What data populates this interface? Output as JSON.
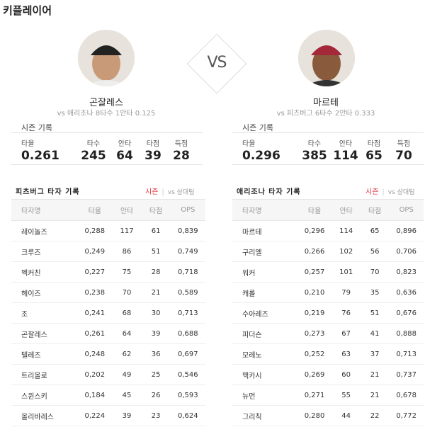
{
  "title": "키플레이어",
  "vs_label": "VS",
  "colors": {
    "accent": "#e0323c",
    "header_bg": "#f6f6f6"
  },
  "season_label": "시즌 기록",
  "stat_labels": [
    "타율",
    "타수",
    "안타",
    "타점",
    "득점"
  ],
  "players": [
    {
      "name": "곤잘레스",
      "sub": "vs 애리조나  8타수 1안타 0.125",
      "stats": [
        "0.261",
        "245",
        "64",
        "39",
        "28"
      ],
      "cap_color": "#222222"
    },
    {
      "name": "마르테",
      "sub": "vs 피츠버그  6타수 2안타 0.333",
      "stats": [
        "0.296",
        "385",
        "114",
        "65",
        "70"
      ],
      "cap_color": "#a3283a"
    }
  ],
  "tables": [
    {
      "title": "피츠버그 타자 기록",
      "toggle_on": "시즌",
      "toggle_sep": "|",
      "toggle_off": "vs 상대팀",
      "columns": [
        "타자명",
        "타율",
        "안타",
        "타점",
        "OPS"
      ],
      "rows": [
        [
          "레이놀즈",
          "0,288",
          "117",
          "61",
          "0,839"
        ],
        [
          "크루즈",
          "0,249",
          "86",
          "51",
          "0,749"
        ],
        [
          "멕커친",
          "0,227",
          "75",
          "28",
          "0,718"
        ],
        [
          "헤이즈",
          "0,238",
          "70",
          "21",
          "0,589"
        ],
        [
          "조",
          "0,241",
          "68",
          "30",
          "0,713"
        ],
        [
          "곤잘레스",
          "0,261",
          "64",
          "39",
          "0,688"
        ],
        [
          "텔레즈",
          "0,248",
          "62",
          "36",
          "0,697"
        ],
        [
          "트리올로",
          "0,202",
          "49",
          "25",
          "0,546"
        ],
        [
          "스윈스키",
          "0,184",
          "45",
          "26",
          "0,593"
        ],
        [
          "올리바레스",
          "0,224",
          "39",
          "23",
          "0,624"
        ]
      ]
    },
    {
      "title": "애리조나 타자 기록",
      "toggle_on": "시즌",
      "toggle_sep": "|",
      "toggle_off": "vs 상대팀",
      "columns": [
        "타자명",
        "타율",
        "안타",
        "타점",
        "OPS"
      ],
      "rows": [
        [
          "마르테",
          "0,296",
          "114",
          "65",
          "0,896"
        ],
        [
          "구리엘",
          "0,266",
          "102",
          "56",
          "0,706"
        ],
        [
          "워커",
          "0,257",
          "101",
          "70",
          "0,823"
        ],
        [
          "캐롤",
          "0,210",
          "79",
          "35",
          "0,636"
        ],
        [
          "수아레즈",
          "0,219",
          "76",
          "51",
          "0,676"
        ],
        [
          "피더슨",
          "0,273",
          "67",
          "41",
          "0,888"
        ],
        [
          "모레노",
          "0,252",
          "63",
          "37",
          "0,713"
        ],
        [
          "맥카시",
          "0,269",
          "60",
          "21",
          "0,737"
        ],
        [
          "뉴먼",
          "0,271",
          "55",
          "21",
          "0,678"
        ],
        [
          "그리칙",
          "0,280",
          "44",
          "22",
          "0,772"
        ]
      ]
    }
  ]
}
